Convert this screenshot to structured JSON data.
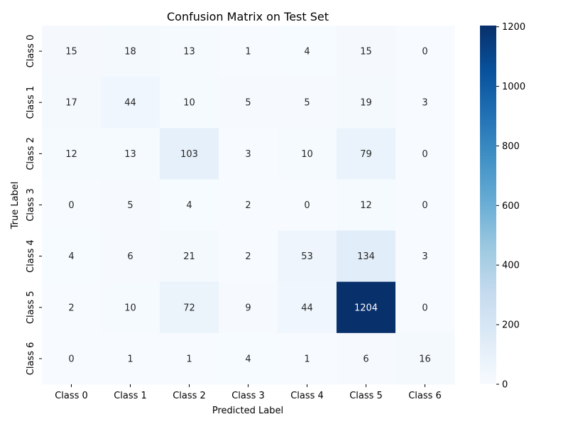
{
  "chart_data": {
    "type": "heatmap",
    "title": "Confusion Matrix on Test Set",
    "xlabel": "Predicted Label",
    "ylabel": "True Label",
    "x_categories": [
      "Class 0",
      "Class 1",
      "Class 2",
      "Class 3",
      "Class 4",
      "Class 5",
      "Class 6"
    ],
    "y_categories": [
      "Class 0",
      "Class 1",
      "Class 2",
      "Class 3",
      "Class 4",
      "Class 5",
      "Class 6"
    ],
    "values": [
      [
        15,
        18,
        13,
        1,
        4,
        15,
        0
      ],
      [
        17,
        44,
        10,
        5,
        5,
        19,
        3
      ],
      [
        12,
        13,
        103,
        3,
        10,
        79,
        0
      ],
      [
        0,
        5,
        4,
        2,
        0,
        12,
        0
      ],
      [
        4,
        6,
        21,
        2,
        53,
        134,
        3
      ],
      [
        2,
        10,
        72,
        9,
        44,
        1204,
        0
      ],
      [
        0,
        1,
        1,
        4,
        1,
        6,
        16
      ]
    ],
    "colormap": "Blues",
    "colorbar": {
      "range": [
        0,
        1204
      ],
      "ticks": [
        0,
        200,
        400,
        600,
        800,
        1000,
        1200
      ]
    },
    "annotations_shown": true
  }
}
